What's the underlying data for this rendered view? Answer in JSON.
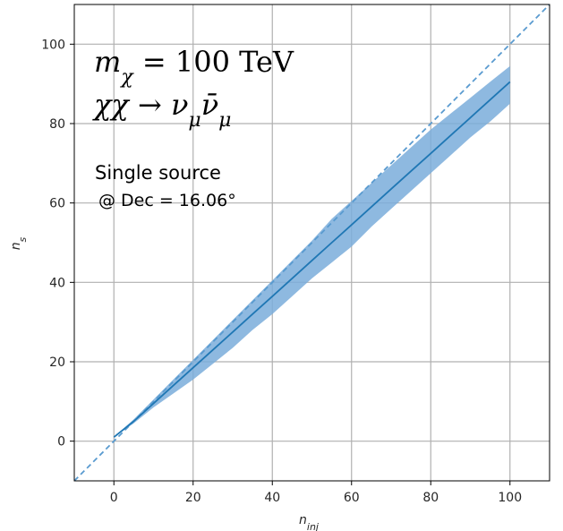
{
  "chart_data": {
    "type": "line",
    "xlabel": "n_inj",
    "ylabel": "n_s",
    "xlim": [
      -10,
      110
    ],
    "ylim": [
      -10,
      110
    ],
    "xticks": [
      0,
      20,
      40,
      60,
      80,
      100
    ],
    "yticks": [
      0,
      20,
      40,
      60,
      80,
      100
    ],
    "grid": true,
    "annotations": {
      "mass": "mχ = 100 TeV",
      "channel": "χχ → νμ ν̄μ",
      "source": "Single source",
      "dec": "@ Dec = 16.06°"
    },
    "series": [
      {
        "role": "median",
        "x": [
          0,
          5,
          10,
          15,
          20,
          25,
          30,
          35,
          40,
          45,
          50,
          55,
          60,
          65,
          70,
          75,
          80,
          85,
          90,
          95,
          100
        ],
        "y": [
          1,
          5,
          9.5,
          14,
          18.5,
          23,
          27.5,
          32,
          36.5,
          41,
          45.5,
          50,
          54.5,
          59,
          63.5,
          68,
          72.5,
          77,
          81.5,
          86,
          90.5
        ],
        "band_low": [
          1,
          4.5,
          8.5,
          12,
          15.5,
          19.5,
          23.5,
          28,
          32,
          36.5,
          41,
          45,
          49,
          54,
          58.5,
          63,
          67.5,
          72,
          76.5,
          80.5,
          85
        ],
        "band_high": [
          1,
          5.5,
          10.5,
          15.5,
          20.5,
          25.5,
          30.5,
          35.5,
          40.5,
          45.5,
          50.5,
          56,
          60.5,
          65,
          69.5,
          74,
          78.5,
          82.5,
          86.5,
          90.5,
          94.5
        ],
        "color": "#1f77b4",
        "band_color": "#7aadda"
      },
      {
        "role": "diagonal",
        "x": [
          -10,
          110
        ],
        "y": [
          -10,
          110
        ],
        "color": "#5a9bd0",
        "style": "dashed"
      }
    ]
  }
}
